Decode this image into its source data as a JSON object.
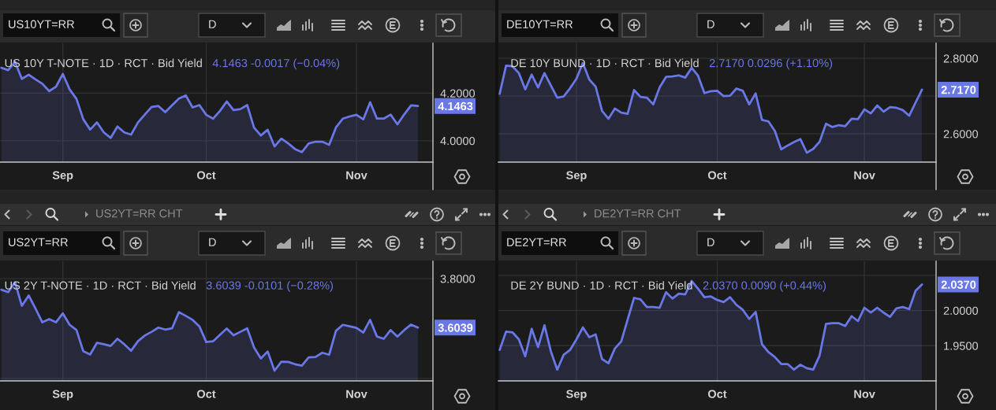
{
  "chart_data": [
    {
      "type": "area",
      "title": "US 10Y T-NOTE · 1D · RCT · Bid Yield",
      "subtitle": "4.1463 -0.0017 (−0.04%)",
      "annotations": [
        "US10YT=RR",
        "D"
      ],
      "categories": [
        null,
        null,
        null,
        null,
        null,
        null,
        null,
        null,
        null,
        "Sep",
        null,
        null,
        null,
        null,
        null,
        null,
        null,
        null,
        null,
        null,
        null,
        null,
        null,
        null,
        null,
        null,
        null,
        null,
        null,
        null,
        "Oct",
        null,
        null,
        null,
        null,
        null,
        null,
        null,
        null,
        null,
        null,
        null,
        null,
        null,
        null,
        null,
        null,
        null,
        null,
        null,
        null,
        null,
        "Nov",
        null,
        null,
        null,
        null,
        null,
        null,
        null,
        null,
        null
      ],
      "series": [
        {
          "color": "#6a77e6",
          "values": [
            4.307,
            4.297,
            4.332,
            4.26,
            4.278,
            4.258,
            4.24,
            4.209,
            4.227,
            4.281,
            4.216,
            4.176,
            4.09,
            4.047,
            4.077,
            4.035,
            4.012,
            4.06,
            4.035,
            4.026,
            4.077,
            4.11,
            4.142,
            4.146,
            4.12,
            4.149,
            4.177,
            4.191,
            4.14,
            4.15,
            4.109,
            4.093,
            4.125,
            4.165,
            4.129,
            4.133,
            4.15,
            4.055,
            4.022,
            4.046,
            3.976,
            4.009,
            3.989,
            3.965,
            3.952,
            3.988,
            3.996,
            3.996,
            3.983,
            4.056,
            4.093,
            4.102,
            4.109,
            4.09,
            4.162,
            4.093,
            4.093,
            4.11,
            4.069,
            4.111,
            4.149,
            4.1463
          ]
        }
      ],
      "ylim": [
        3.91,
        4.41
      ],
      "yticks": [
        {
          "value": 4.0,
          "label": "4.0000"
        },
        {
          "value": 4.1463,
          "label": "4.1463"
        },
        {
          "value": 4.2,
          "label": "4.2000"
        }
      ],
      "grid": true
    },
    {
      "type": "area",
      "title": "DE 10Y BUND · 1D · RCT · Bid Yield",
      "subtitle": "2.7170 0.0296 (+1.10%)",
      "annotations": [
        "DE10YT=RR",
        "D"
      ],
      "categories": [
        null,
        null,
        null,
        null,
        null,
        null,
        null,
        null,
        null,
        null,
        null,
        null,
        "Sep",
        null,
        null,
        null,
        null,
        null,
        null,
        null,
        null,
        null,
        null,
        null,
        null,
        null,
        null,
        null,
        null,
        null,
        null,
        null,
        null,
        null,
        "Oct",
        null,
        null,
        null,
        null,
        null,
        null,
        null,
        null,
        null,
        null,
        null,
        null,
        null,
        null,
        null,
        null,
        null,
        null,
        null,
        null,
        null,
        null,
        "Nov",
        null,
        null,
        null,
        null,
        null,
        null,
        null,
        null,
        null
      ],
      "series": [
        {
          "color": "#6a77e6",
          "values": [
            2.706,
            2.781,
            2.779,
            2.761,
            2.718,
            2.757,
            2.723,
            2.761,
            2.728,
            2.696,
            2.699,
            2.721,
            2.746,
            2.788,
            2.744,
            2.725,
            2.661,
            2.64,
            2.667,
            2.656,
            2.653,
            2.716,
            2.698,
            2.696,
            2.678,
            2.723,
            2.751,
            2.752,
            2.755,
            2.749,
            2.775,
            2.754,
            2.708,
            2.713,
            2.714,
            2.7,
            2.701,
            2.72,
            2.714,
            2.678,
            2.707,
            2.637,
            2.633,
            2.608,
            2.559,
            2.569,
            2.578,
            2.586,
            2.55,
            2.56,
            2.579,
            2.627,
            2.618,
            2.623,
            2.62,
            2.64,
            2.639,
            2.665,
            2.654,
            2.675,
            2.659,
            2.671,
            2.669,
            2.663,
            2.648,
            2.683,
            2.717
          ]
        }
      ],
      "ylim": [
        2.525,
        2.84
      ],
      "yticks": [
        {
          "value": 2.6,
          "label": "2.6000"
        },
        {
          "value": 2.7,
          "label": null
        },
        {
          "value": 2.717,
          "label": "2.7170"
        },
        {
          "value": 2.8,
          "label": "2.8000"
        }
      ],
      "grid": true
    },
    {
      "type": "area",
      "title": "US 2Y T-NOTE · 1D · RCT · Bid Yield",
      "subtitle": "3.6039 -0.0101 (−0.28%)",
      "annotations": [
        "US2YT=RR",
        "D",
        "US2YT=RR CHT"
      ],
      "categories": [
        null,
        null,
        null,
        null,
        null,
        null,
        null,
        null,
        null,
        "Sep",
        null,
        null,
        null,
        null,
        null,
        null,
        null,
        null,
        null,
        null,
        null,
        null,
        null,
        null,
        null,
        null,
        null,
        null,
        null,
        null,
        "Oct",
        null,
        null,
        null,
        null,
        null,
        null,
        null,
        null,
        null,
        null,
        null,
        null,
        null,
        null,
        null,
        null,
        null,
        null,
        null,
        null,
        null,
        "Nov",
        null,
        null,
        null,
        null,
        null,
        null,
        null,
        null,
        null
      ],
      "series": [
        {
          "color": "#6a77e6",
          "values": [
            3.756,
            3.746,
            3.786,
            3.691,
            3.733,
            3.68,
            3.625,
            3.638,
            3.625,
            3.661,
            3.615,
            3.594,
            3.509,
            3.496,
            3.543,
            3.537,
            3.53,
            3.559,
            3.537,
            3.511,
            3.549,
            3.572,
            3.587,
            3.604,
            3.596,
            3.601,
            3.666,
            3.651,
            3.635,
            3.609,
            3.546,
            3.549,
            3.575,
            3.6,
            3.573,
            3.587,
            3.601,
            3.524,
            3.48,
            3.508,
            3.431,
            3.467,
            3.466,
            3.457,
            3.451,
            3.484,
            3.486,
            3.503,
            3.495,
            3.591,
            3.615,
            3.609,
            3.603,
            3.584,
            3.635,
            3.568,
            3.559,
            3.594,
            3.568,
            3.594,
            3.616,
            3.6039
          ]
        }
      ],
      "ylim": [
        3.39,
        3.87
      ],
      "yticks": [
        {
          "value": 3.4,
          "label": null
        },
        {
          "value": 3.6039,
          "label": "3.6039"
        },
        {
          "value": 3.8,
          "label": "3.8000"
        }
      ],
      "grid": true
    },
    {
      "type": "area",
      "title": "DE 2Y BUND · 1D · RCT · Bid Yield",
      "subtitle": "2.0370 0.0090 (+0.44%)",
      "annotations": [
        "DE2YT=RR",
        "D",
        "DE2YT=RR CHT"
      ],
      "categories": [
        null,
        null,
        null,
        null,
        null,
        null,
        null,
        null,
        null,
        null,
        null,
        null,
        "Sep",
        null,
        null,
        null,
        null,
        null,
        null,
        null,
        null,
        null,
        null,
        null,
        null,
        null,
        null,
        null,
        null,
        null,
        null,
        null,
        null,
        null,
        "Oct",
        null,
        null,
        null,
        null,
        null,
        null,
        null,
        null,
        null,
        null,
        null,
        null,
        null,
        null,
        null,
        null,
        null,
        null,
        null,
        null,
        null,
        null,
        "Nov",
        null,
        null,
        null,
        null,
        null,
        null,
        null,
        null,
        null
      ],
      "series": [
        {
          "color": "#6a77e6",
          "values": [
            1.944,
            1.97,
            1.969,
            1.959,
            1.935,
            1.974,
            1.948,
            1.979,
            1.942,
            1.916,
            1.937,
            1.944,
            1.959,
            1.976,
            1.962,
            1.966,
            1.931,
            1.925,
            1.946,
            1.956,
            1.987,
            2.018,
            2.016,
            2.005,
            2.005,
            2.004,
            2.026,
            2.017,
            2.024,
            2.023,
            2.042,
            2.031,
            2.019,
            2.02,
            2.015,
            2.012,
            2.019,
            2.008,
            2.001,
            1.988,
            1.998,
            1.952,
            1.941,
            1.934,
            1.924,
            1.924,
            1.916,
            1.923,
            1.918,
            1.916,
            1.936,
            1.981,
            1.982,
            1.982,
            1.978,
            1.992,
            1.985,
            2.004,
            1.997,
            2.004,
            1.997,
            1.991,
            2.003,
            2.005,
            2.002,
            2.028,
            2.037
          ]
        }
      ],
      "ylim": [
        1.9,
        2.07
      ],
      "yticks": [
        {
          "value": 1.95,
          "label": "1.9500"
        },
        {
          "value": 2.0,
          "label": "2.0000"
        },
        {
          "value": 2.037,
          "label": "2.0370"
        },
        {
          "value": 2.05,
          "label": null
        }
      ],
      "grid": true
    }
  ]
}
